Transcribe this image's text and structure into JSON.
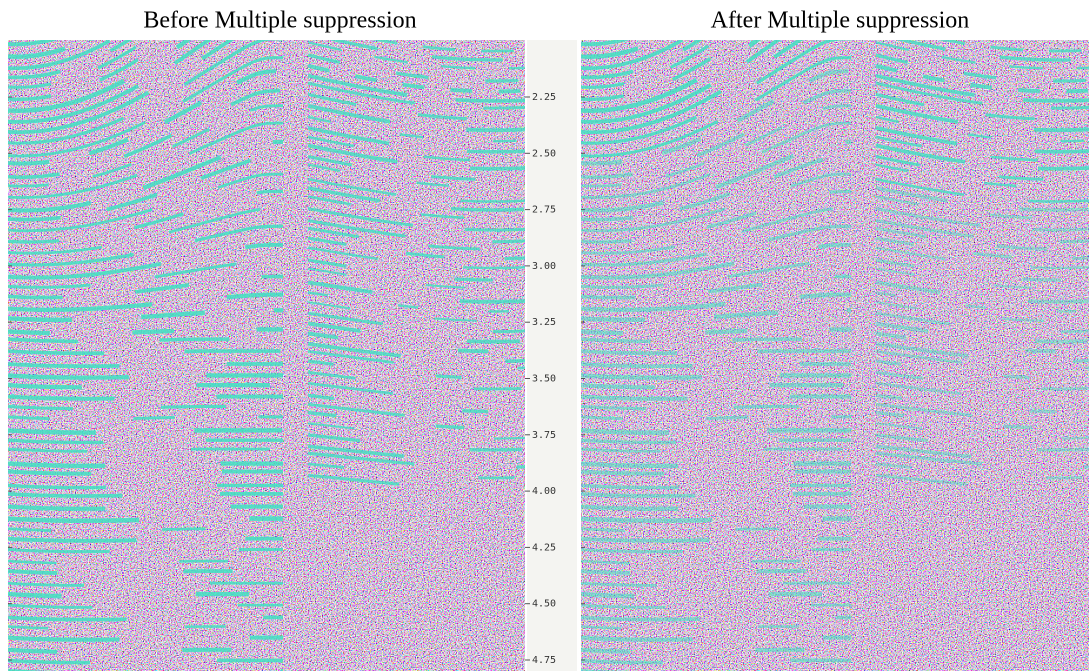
{
  "panels": [
    {
      "title": "Before Multiple suppression"
    },
    {
      "title": "After Multiple suppression"
    }
  ],
  "axis": {
    "labels": [
      "2.25",
      "2.50",
      "2.75",
      "3.00",
      "3.25",
      "3.50",
      "3.75",
      "4.00",
      "4.25",
      "4.50",
      "4.75"
    ]
  }
}
